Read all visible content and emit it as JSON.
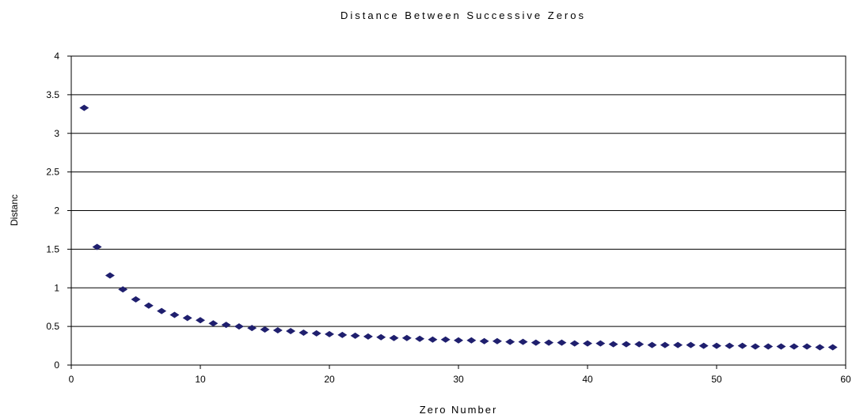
{
  "chart_data": {
    "type": "scatter",
    "title": "Distance Between Successive Zeros",
    "xlabel": "Zero Number",
    "ylabel": "Distanc",
    "xlim": [
      0,
      60
    ],
    "ylim": [
      0,
      4
    ],
    "x_ticks": [
      "0",
      "10",
      "20",
      "30",
      "40",
      "50",
      "60"
    ],
    "y_ticks": [
      "0",
      "0.5",
      "1",
      "1.5",
      "2",
      "2.5",
      "3",
      "3.5",
      "4"
    ],
    "grid": "horizontal",
    "marker_color": "#1f1f6e",
    "series": [
      {
        "x": [
          1,
          2,
          3,
          4,
          5,
          6,
          7,
          8,
          9,
          10,
          11,
          12,
          13,
          14,
          15,
          16,
          17,
          18,
          19,
          20,
          21,
          22,
          23,
          24,
          25,
          26,
          27,
          28,
          29,
          30,
          31,
          32,
          33,
          34,
          35,
          36,
          37,
          38,
          39,
          40,
          41,
          42,
          43,
          44,
          45,
          46,
          47,
          48,
          49,
          50,
          51,
          52,
          53,
          54,
          55,
          56,
          57,
          58,
          59
        ],
        "values": [
          3.33,
          1.53,
          1.16,
          0.98,
          0.85,
          0.77,
          0.7,
          0.65,
          0.61,
          0.58,
          0.54,
          0.52,
          0.5,
          0.48,
          0.46,
          0.45,
          0.44,
          0.42,
          0.41,
          0.4,
          0.39,
          0.38,
          0.37,
          0.36,
          0.35,
          0.35,
          0.34,
          0.33,
          0.33,
          0.32,
          0.32,
          0.31,
          0.31,
          0.3,
          0.3,
          0.29,
          0.29,
          0.29,
          0.28,
          0.28,
          0.28,
          0.27,
          0.27,
          0.27,
          0.26,
          0.26,
          0.26,
          0.26,
          0.25,
          0.25,
          0.25,
          0.25,
          0.24,
          0.24,
          0.24,
          0.24,
          0.24,
          0.23,
          0.23
        ]
      }
    ]
  }
}
